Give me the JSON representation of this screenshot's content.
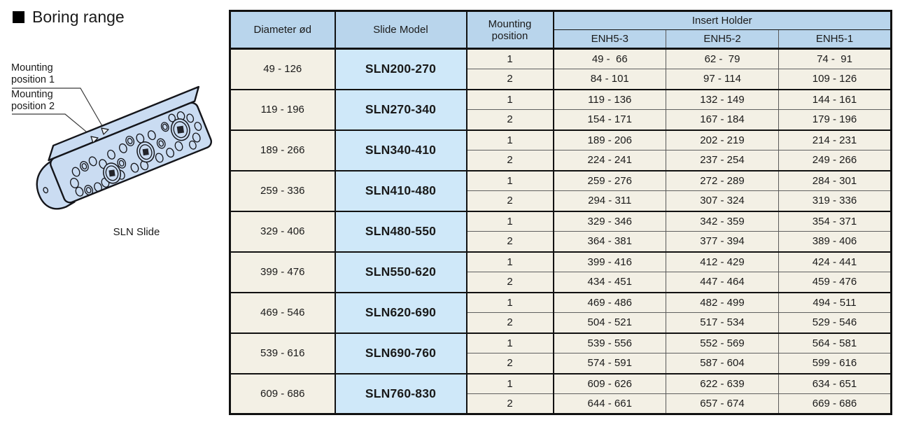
{
  "page": {
    "title": "Boring range"
  },
  "illustration": {
    "label_position1": "Mounting position 1",
    "label_position2": "Mounting position 2",
    "caption": "SLN Slide"
  },
  "colors": {
    "header_blue": "#b9d5ec",
    "model_blue": "#cfe8f9",
    "cell_cream": "#f3f0e5",
    "slide_blue": "#cadcf2"
  },
  "table": {
    "headers": {
      "diameter": "Diameter ød",
      "model": "Slide Model",
      "mounting": "Mounting position",
      "insert_holder": "Insert Holder",
      "holder_columns": [
        "ENH5-3",
        "ENH5-2",
        "ENH5-1"
      ]
    },
    "groups": [
      {
        "diameter": "49 - 126",
        "model": "SLN200-270",
        "rows": [
          {
            "position": "1",
            "values": [
              "49 -  66",
              "62 -  79",
              "74 -  91"
            ]
          },
          {
            "position": "2",
            "values": [
              "84 - 101",
              "97 - 114",
              "109 - 126"
            ]
          }
        ]
      },
      {
        "diameter": "119 - 196",
        "model": "SLN270-340",
        "rows": [
          {
            "position": "1",
            "values": [
              "119 - 136",
              "132 - 149",
              "144 - 161"
            ]
          },
          {
            "position": "2",
            "values": [
              "154 - 171",
              "167 - 184",
              "179 - 196"
            ]
          }
        ]
      },
      {
        "diameter": "189 - 266",
        "model": "SLN340-410",
        "rows": [
          {
            "position": "1",
            "values": [
              "189 - 206",
              "202 - 219",
              "214 - 231"
            ]
          },
          {
            "position": "2",
            "values": [
              "224 - 241",
              "237 - 254",
              "249 - 266"
            ]
          }
        ]
      },
      {
        "diameter": "259 - 336",
        "model": "SLN410-480",
        "rows": [
          {
            "position": "1",
            "values": [
              "259 - 276",
              "272 - 289",
              "284 - 301"
            ]
          },
          {
            "position": "2",
            "values": [
              "294 - 311",
              "307 - 324",
              "319 - 336"
            ]
          }
        ]
      },
      {
        "diameter": "329 - 406",
        "model": "SLN480-550",
        "rows": [
          {
            "position": "1",
            "values": [
              "329 - 346",
              "342 - 359",
              "354 - 371"
            ]
          },
          {
            "position": "2",
            "values": [
              "364 - 381",
              "377 - 394",
              "389 - 406"
            ]
          }
        ]
      },
      {
        "diameter": "399 - 476",
        "model": "SLN550-620",
        "rows": [
          {
            "position": "1",
            "values": [
              "399 - 416",
              "412 - 429",
              "424 - 441"
            ]
          },
          {
            "position": "2",
            "values": [
              "434 - 451",
              "447 - 464",
              "459 - 476"
            ]
          }
        ]
      },
      {
        "diameter": "469 - 546",
        "model": "SLN620-690",
        "rows": [
          {
            "position": "1",
            "values": [
              "469 - 486",
              "482 - 499",
              "494 - 511"
            ]
          },
          {
            "position": "2",
            "values": [
              "504 - 521",
              "517 - 534",
              "529 - 546"
            ]
          }
        ]
      },
      {
        "diameter": "539 - 616",
        "model": "SLN690-760",
        "rows": [
          {
            "position": "1",
            "values": [
              "539 - 556",
              "552 - 569",
              "564 - 581"
            ]
          },
          {
            "position": "2",
            "values": [
              "574 - 591",
              "587 - 604",
              "599 - 616"
            ]
          }
        ]
      },
      {
        "diameter": "609 - 686",
        "model": "SLN760-830",
        "rows": [
          {
            "position": "1",
            "values": [
              "609 - 626",
              "622 - 639",
              "634 - 651"
            ]
          },
          {
            "position": "2",
            "values": [
              "644 - 661",
              "657 - 674",
              "669 - 686"
            ]
          }
        ]
      }
    ]
  }
}
